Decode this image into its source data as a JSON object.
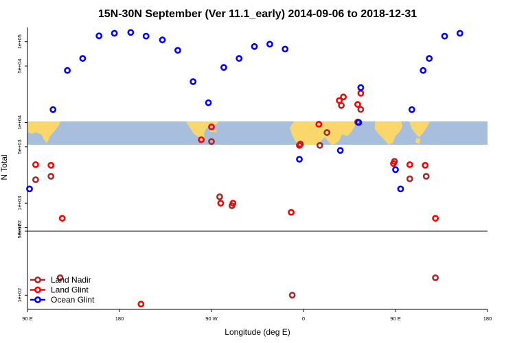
{
  "chart_data": {
    "type": "scatter",
    "title": "15N-30N September (Ver 11.1_early)   2014-09-06 to 2018-12-31",
    "xlabel": "Longitude (deg E)",
    "ylabel": "N Total",
    "x_ticks": [
      {
        "value": 90,
        "label": "90 E"
      },
      {
        "value": 180,
        "label": "180"
      },
      {
        "value": 270,
        "label": "90 W"
      },
      {
        "value": 360,
        "label": "0"
      },
      {
        "value": 450,
        "label": "90 E"
      },
      {
        "value": 540,
        "label": "180"
      }
    ],
    "xlim": [
      90,
      540
    ],
    "panels": [
      {
        "name": "upper",
        "scale": "log",
        "ylim": [
          450,
          150000
        ],
        "y_ticks": [
          {
            "value": 500,
            "label": "5e+02"
          },
          {
            "value": 1000,
            "label": "1e+03"
          },
          {
            "value": 5000,
            "label": "5e+03"
          },
          {
            "value": 10000,
            "label": "1e+04"
          },
          {
            "value": 50000,
            "label": "5e+04"
          },
          {
            "value": 100000,
            "label": "1e+05"
          }
        ]
      },
      {
        "name": "lower",
        "scale": "log",
        "ylim": [
          70,
          500
        ],
        "y_ticks": [
          {
            "value": 500,
            "label": "5e+02"
          },
          {
            "value": 100,
            "label": "1e+02"
          }
        ]
      }
    ],
    "map_strip": {
      "ocean_color": "#a7bedc",
      "land_color": "#f9d76b"
    },
    "series": [
      {
        "name": "Land Nadir",
        "color": "#a52a2a",
        "points": [
          {
            "x": 98,
            "y": 1950,
            "panel": "upper"
          },
          {
            "x": 113,
            "y": 2150,
            "panel": "upper"
          },
          {
            "x": 122,
            "y": 155,
            "panel": "lower"
          },
          {
            "x": 270,
            "y": 5800,
            "panel": "upper"
          },
          {
            "x": 278,
            "y": 1200,
            "panel": "upper"
          },
          {
            "x": 290,
            "y": 930,
            "panel": "upper"
          },
          {
            "x": 349,
            "y": 100,
            "panel": "lower"
          },
          {
            "x": 357,
            "y": 5400,
            "panel": "upper"
          },
          {
            "x": 376,
            "y": 5200,
            "panel": "upper"
          },
          {
            "x": 383,
            "y": 7500,
            "panel": "upper"
          },
          {
            "x": 397,
            "y": 16200,
            "panel": "upper"
          },
          {
            "x": 413,
            "y": 10100,
            "panel": "upper"
          },
          {
            "x": 416,
            "y": 14500,
            "panel": "upper"
          },
          {
            "x": 449,
            "y": 3300,
            "panel": "upper"
          },
          {
            "x": 464,
            "y": 2000,
            "panel": "upper"
          },
          {
            "x": 480,
            "y": 2150,
            "panel": "upper"
          },
          {
            "x": 489,
            "y": 155,
            "panel": "lower"
          }
        ]
      },
      {
        "name": "Land Glint",
        "color": "#ff0000",
        "points": [
          {
            "x": 98,
            "y": 3000,
            "panel": "upper"
          },
          {
            "x": 113,
            "y": 2950,
            "panel": "upper"
          },
          {
            "x": 124,
            "y": 650,
            "panel": "upper"
          },
          {
            "x": 201,
            "y": 80,
            "panel": "lower"
          },
          {
            "x": 260,
            "y": 6100,
            "panel": "upper"
          },
          {
            "x": 270,
            "y": 8800,
            "panel": "upper"
          },
          {
            "x": 279,
            "y": 1000,
            "panel": "upper"
          },
          {
            "x": 291,
            "y": 1000,
            "panel": "upper"
          },
          {
            "x": 348,
            "y": 770,
            "panel": "upper"
          },
          {
            "x": 356,
            "y": 5200,
            "panel": "upper"
          },
          {
            "x": 375,
            "y": 9500,
            "panel": "upper"
          },
          {
            "x": 395,
            "y": 18700,
            "panel": "upper"
          },
          {
            "x": 399,
            "y": 20700,
            "panel": "upper"
          },
          {
            "x": 413,
            "y": 16700,
            "panel": "upper"
          },
          {
            "x": 416,
            "y": 23000,
            "panel": "upper"
          },
          {
            "x": 448,
            "y": 3100,
            "panel": "upper"
          },
          {
            "x": 464,
            "y": 3000,
            "panel": "upper"
          },
          {
            "x": 479,
            "y": 2950,
            "panel": "upper"
          },
          {
            "x": 489,
            "y": 650,
            "panel": "upper"
          }
        ]
      },
      {
        "name": "Ocean Glint",
        "color": "#0000ff",
        "points": [
          {
            "x": 92,
            "y": 1500,
            "panel": "upper"
          },
          {
            "x": 115,
            "y": 14400,
            "panel": "upper"
          },
          {
            "x": 129,
            "y": 44000,
            "panel": "upper"
          },
          {
            "x": 144,
            "y": 62000,
            "panel": "upper"
          },
          {
            "x": 160,
            "y": 118000,
            "panel": "upper"
          },
          {
            "x": 175,
            "y": 127000,
            "panel": "upper"
          },
          {
            "x": 191,
            "y": 130000,
            "panel": "upper"
          },
          {
            "x": 206,
            "y": 117000,
            "panel": "upper"
          },
          {
            "x": 222,
            "y": 105000,
            "panel": "upper"
          },
          {
            "x": 237,
            "y": 78000,
            "panel": "upper"
          },
          {
            "x": 252,
            "y": 32000,
            "panel": "upper"
          },
          {
            "x": 267,
            "y": 17500,
            "panel": "upper"
          },
          {
            "x": 282,
            "y": 48000,
            "panel": "upper"
          },
          {
            "x": 297,
            "y": 62000,
            "panel": "upper"
          },
          {
            "x": 312,
            "y": 87000,
            "panel": "upper"
          },
          {
            "x": 327,
            "y": 93000,
            "panel": "upper"
          },
          {
            "x": 342,
            "y": 81000,
            "panel": "upper"
          },
          {
            "x": 356,
            "y": 3500,
            "panel": "upper"
          },
          {
            "x": 396,
            "y": 4500,
            "panel": "upper"
          },
          {
            "x": 414,
            "y": 10000,
            "panel": "upper"
          },
          {
            "x": 416,
            "y": 27000,
            "panel": "upper"
          },
          {
            "x": 450,
            "y": 2600,
            "panel": "upper"
          },
          {
            "x": 455,
            "y": 1500,
            "panel": "upper"
          },
          {
            "x": 466,
            "y": 14400,
            "panel": "upper"
          },
          {
            "x": 477,
            "y": 44000,
            "panel": "upper"
          },
          {
            "x": 483,
            "y": 62000,
            "panel": "upper"
          },
          {
            "x": 498,
            "y": 117000,
            "panel": "upper"
          },
          {
            "x": 513,
            "y": 127000,
            "panel": "upper"
          }
        ]
      }
    ],
    "legend": {
      "placement": "bottom-left",
      "entries": [
        "Land Nadir",
        "Land Glint",
        "Ocean Glint"
      ]
    }
  }
}
